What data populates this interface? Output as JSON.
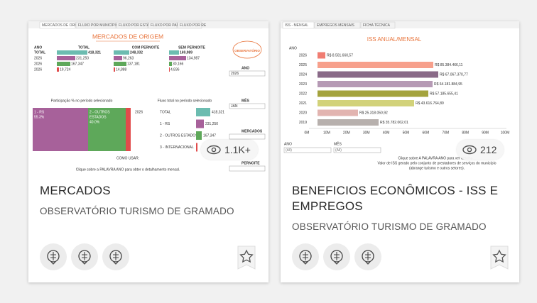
{
  "cards": [
    {
      "thumbnail": {
        "tabs": [
          "MERCADOS DE ORIGEM",
          "FLUXO POR MUNICÍPIO RS",
          "FLUXO POR ESTADO",
          "FLUXO POR PAÍS",
          "FLUXO POR RE"
        ],
        "title": "MERCADOS DE ORIGEM",
        "logo": "OBSERVATÓRIO",
        "table": {
          "header": [
            "ANO",
            "TOTAL",
            "COM PERNOITE",
            "SEM PERNOITE"
          ],
          "rows": [
            [
              "TOTAL",
              "418,321",
              "248,332",
              "169,989"
            ],
            [
              "2026",
              "231,250",
              "96,263",
              "134,987"
            ],
            [
              "2026",
              "167,347",
              "137,181",
              "30,166"
            ],
            [
              "2026",
              "19,724",
              "14,888",
              "4,836"
            ]
          ]
        },
        "filters": [
          {
            "label": "ANO",
            "value": "2026"
          },
          {
            "label": "MÊS",
            "value": "JAN"
          },
          {
            "label": "MERCADOS"
          },
          {
            "label": "PERNOITE"
          }
        ],
        "share_title": "Participação % no período selecionado",
        "share": [
          {
            "lines": [
              "1 - RS",
              "55.3%"
            ]
          },
          {
            "lines": [
              "2 - OUTROS",
              "ESTADOS",
              "40.0%"
            ]
          }
        ],
        "flow_title": "Fluxo total no período selecionado",
        "flow_year": "2026",
        "flow": [
          [
            "TOTAL",
            "418,321"
          ],
          [
            "1 - RS",
            "231,250"
          ],
          [
            "2 - OUTROS ESTADOS",
            "167,347"
          ],
          [
            "3 - INTERNACIONAL"
          ]
        ],
        "how_to": "COMO USAR:",
        "hint": "Clique sobre a PALAVRA ANO para obter o detalhamento mensal."
      },
      "views": "1.1K+",
      "title": "MERCADOS",
      "subtitle": "OBSERVATÓRIO TURISMO DE GRAMADO"
    },
    {
      "thumbnail": {
        "tabs": [
          "ISS - MENSAL",
          "EMPREGOS MENSAIS",
          "FICHA TÉCNICA"
        ],
        "title": "ISS ANUAL/MENSAL",
        "axis_label": "ANO",
        "rows": [
          {
            "year": "2026",
            "label": "R$ 8.501.660,57"
          },
          {
            "year": "2025",
            "label": "R$ 85.384.466,11"
          },
          {
            "year": "2024",
            "label": "R$ 67.067.370,77"
          },
          {
            "year": "2023",
            "label": "R$ 64.181.884,95"
          },
          {
            "year": "2022",
            "label": "R$ 57.185.655,41"
          },
          {
            "year": "2021",
            "label": "R$ 43.616.764,89"
          },
          {
            "year": "2020",
            "label": "R$ 25.318.050,92"
          },
          {
            "year": "2019",
            "label": "R$ 35.782.062,01"
          }
        ],
        "ticks": [
          "0M",
          "10M",
          "20M",
          "30M",
          "40M",
          "50M",
          "60M",
          "70M",
          "80M",
          "90M",
          "100M"
        ],
        "filters": [
          {
            "label": "ANO",
            "value": "(All)"
          },
          {
            "label": "MÊS",
            "value": "(All)"
          }
        ],
        "notes": [
          "Clique sobre A PALAVRA ANO para ver detalha...",
          "Valor de ISS gerado pelo conjunto de prestadores de serviços do município",
          "(abrange turismo e outros setores)."
        ]
      },
      "views": "212",
      "title": "BENEFICIOS ECONÔMICOS - ISS E EMPREGOS",
      "subtitle": "OBSERVATÓRIO TURISMO DE GRAMADO"
    }
  ]
}
